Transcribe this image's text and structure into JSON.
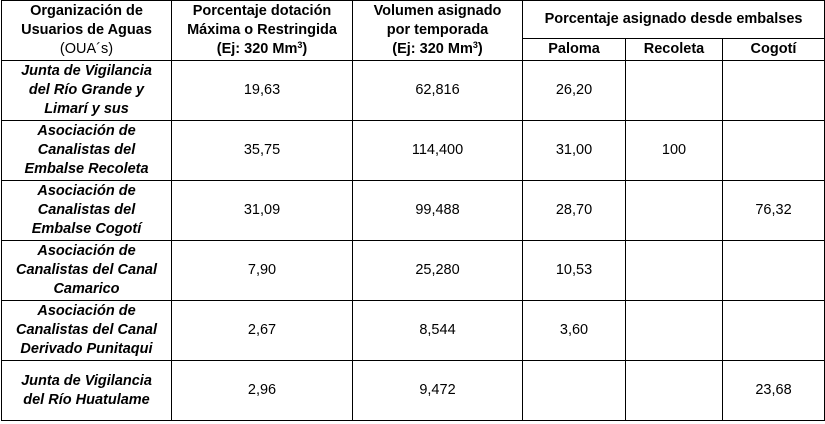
{
  "headers": {
    "org_line1": "Organización de",
    "org_line2": "Usuarios de Aguas",
    "org_line3": "(OUA´s)",
    "pct_line1": "Porcentaje dotación",
    "pct_line2": "Máxima o Restringida",
    "pct_line3": "(Ej: 320 Mm",
    "pct_sup": "3",
    "pct_close": ")",
    "vol_line1": "Volumen asignado",
    "vol_line2": "por temporada",
    "vol_line3": "(Ej: 320 Mm",
    "vol_sup": "3",
    "vol_close": ")",
    "group": "Porcentaje asignado desde embalses",
    "paloma": "Paloma",
    "recoleta": "Recoleta",
    "cogoti": "Cogotí"
  },
  "rows": [
    {
      "org": [
        "Junta de Vigilancia",
        "del Río Grande y",
        "Limarí y sus"
      ],
      "pct": "19,63",
      "vol": "62,816",
      "paloma": "26,20",
      "recoleta": "",
      "cogoti": ""
    },
    {
      "org": [
        "Asociación de",
        "Canalistas del",
        "Embalse Recoleta"
      ],
      "pct": "35,75",
      "vol": "114,400",
      "paloma": "31,00",
      "recoleta": "100",
      "cogoti": ""
    },
    {
      "org": [
        "Asociación de",
        "Canalistas del",
        "Embalse Cogotí"
      ],
      "pct": "31,09",
      "vol": "99,488",
      "paloma": "28,70",
      "recoleta": "",
      "cogoti": "76,32"
    },
    {
      "org": [
        "Asociación de",
        "Canalistas del Canal",
        "Camarico"
      ],
      "pct": "7,90",
      "vol": "25,280",
      "paloma": "10,53",
      "recoleta": "",
      "cogoti": ""
    },
    {
      "org": [
        "Asociación de",
        "Canalistas del Canal",
        "Derivado Punitaqui"
      ],
      "pct": "2,67",
      "vol": "8,544",
      "paloma": "3,60",
      "recoleta": "",
      "cogoti": ""
    },
    {
      "org": [
        "Junta de Vigilancia",
        "del Río Huatulame"
      ],
      "pct": "2,96",
      "vol": "9,472",
      "paloma": "",
      "recoleta": "",
      "cogoti": "23,68"
    }
  ]
}
